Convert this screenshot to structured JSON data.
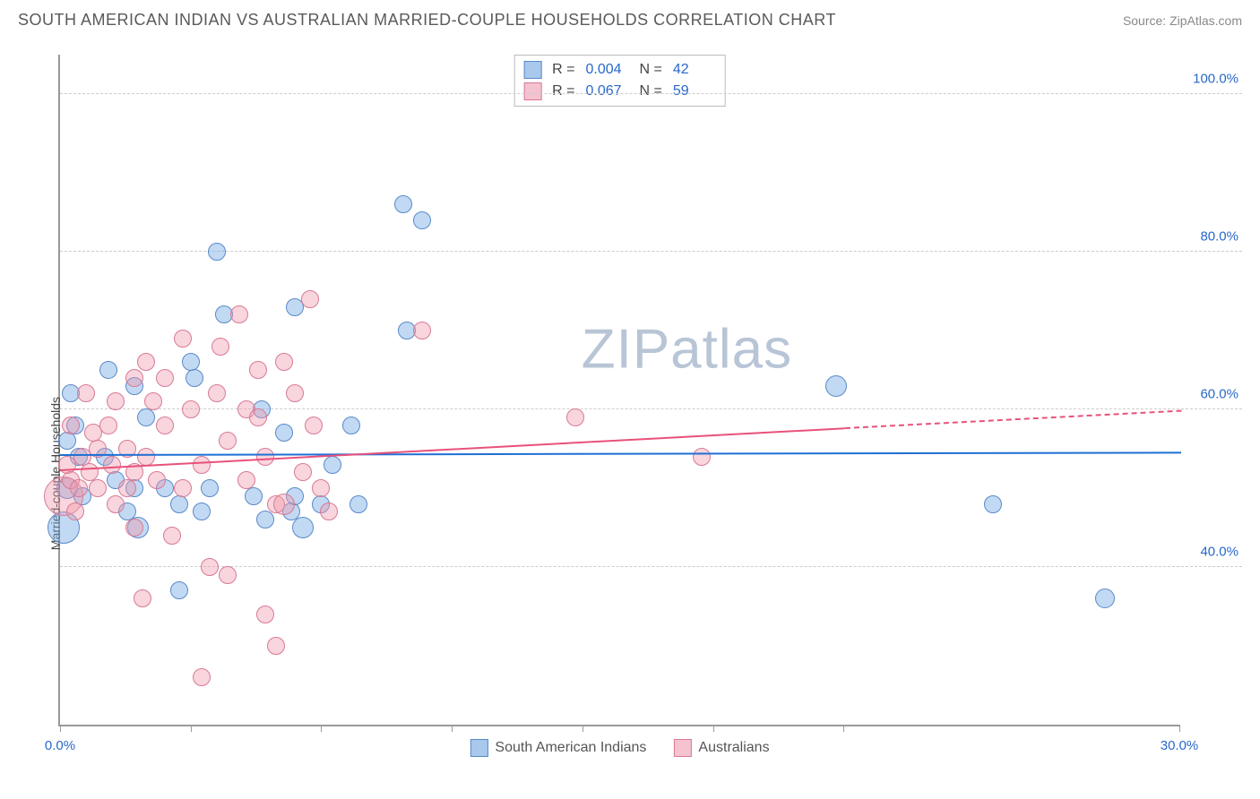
{
  "header": {
    "title": "SOUTH AMERICAN INDIAN VS AUSTRALIAN MARRIED-COUPLE HOUSEHOLDS CORRELATION CHART",
    "source": "Source: ZipAtlas.com"
  },
  "chart": {
    "type": "scatter",
    "y_label": "Married-couple Households",
    "xlim": [
      0,
      30
    ],
    "ylim": [
      20,
      105
    ],
    "x_ticks": [
      0,
      3.5,
      7,
      10.5,
      14,
      17.5,
      21,
      30
    ],
    "x_tick_labels": {
      "0": "0.0%",
      "30": "30.0%"
    },
    "y_gridlines": [
      40,
      60,
      80,
      100
    ],
    "y_tick_labels": {
      "40": "40.0%",
      "60": "60.0%",
      "80": "80.0%",
      "100": "100.0%"
    },
    "background_color": "#ffffff",
    "grid_color": "#cccccc",
    "axis_color": "#999999",
    "tick_label_color": "#2968c8",
    "watermark": "ZIPatlas",
    "series": [
      {
        "name": "South American Indians",
        "color_fill": "rgba(120,170,230,0.45)",
        "color_stroke": "#5a8ac8",
        "swatch_fill": "#a8c8ec",
        "swatch_stroke": "#5a8ac8",
        "trend_color": "#1f6fd4",
        "marker_radius": 10,
        "stats": {
          "R": "0.004",
          "N": "42"
        },
        "trend": {
          "x1": 0,
          "y1": 54.5,
          "x2": 30,
          "y2": 54.8
        },
        "points": [
          {
            "x": 0.2,
            "y": 50,
            "r": 12
          },
          {
            "x": 0.1,
            "y": 45,
            "r": 18
          },
          {
            "x": 0.3,
            "y": 62
          },
          {
            "x": 0.5,
            "y": 54
          },
          {
            "x": 0.6,
            "y": 49
          },
          {
            "x": 0.2,
            "y": 56
          },
          {
            "x": 0.4,
            "y": 58
          },
          {
            "x": 1.3,
            "y": 65
          },
          {
            "x": 1.2,
            "y": 54
          },
          {
            "x": 1.5,
            "y": 51
          },
          {
            "x": 1.8,
            "y": 47
          },
          {
            "x": 2.0,
            "y": 50
          },
          {
            "x": 2.0,
            "y": 63
          },
          {
            "x": 2.1,
            "y": 45,
            "r": 12
          },
          {
            "x": 2.3,
            "y": 59
          },
          {
            "x": 2.8,
            "y": 50
          },
          {
            "x": 3.2,
            "y": 48
          },
          {
            "x": 3.5,
            "y": 66
          },
          {
            "x": 3.2,
            "y": 37
          },
          {
            "x": 3.6,
            "y": 64
          },
          {
            "x": 3.8,
            "y": 47
          },
          {
            "x": 4.0,
            "y": 50
          },
          {
            "x": 4.2,
            "y": 80
          },
          {
            "x": 4.4,
            "y": 72
          },
          {
            "x": 5.2,
            "y": 49
          },
          {
            "x": 5.5,
            "y": 46
          },
          {
            "x": 5.4,
            "y": 60
          },
          {
            "x": 6.0,
            "y": 57
          },
          {
            "x": 6.2,
            "y": 47
          },
          {
            "x": 6.3,
            "y": 49
          },
          {
            "x": 6.3,
            "y": 73
          },
          {
            "x": 6.5,
            "y": 45,
            "r": 12
          },
          {
            "x": 7.0,
            "y": 48
          },
          {
            "x": 7.3,
            "y": 53
          },
          {
            "x": 7.8,
            "y": 58
          },
          {
            "x": 8.0,
            "y": 48
          },
          {
            "x": 9.3,
            "y": 70
          },
          {
            "x": 9.2,
            "y": 86
          },
          {
            "x": 9.7,
            "y": 84
          },
          {
            "x": 20.8,
            "y": 63,
            "r": 12
          },
          {
            "x": 25.0,
            "y": 48
          },
          {
            "x": 28.0,
            "y": 36,
            "r": 11
          }
        ]
      },
      {
        "name": "Australians",
        "color_fill": "rgba(240,150,170,0.4)",
        "color_stroke": "#d87a95",
        "swatch_fill": "#f5c2cf",
        "swatch_stroke": "#d87a95",
        "trend_color": "#e8517a",
        "marker_radius": 10,
        "stats": {
          "R": "0.067",
          "N": "59"
        },
        "trend_solid": {
          "x1": 0,
          "y1": 52.5,
          "x2": 21,
          "y2": 57.8
        },
        "trend_dashed": {
          "x1": 21,
          "y1": 57.8,
          "x2": 30,
          "y2": 60.0
        },
        "points": [
          {
            "x": 0.1,
            "y": 49,
            "r": 22
          },
          {
            "x": 0.2,
            "y": 53
          },
          {
            "x": 0.3,
            "y": 51
          },
          {
            "x": 0.3,
            "y": 58
          },
          {
            "x": 0.5,
            "y": 50
          },
          {
            "x": 0.6,
            "y": 54
          },
          {
            "x": 0.4,
            "y": 47
          },
          {
            "x": 0.8,
            "y": 52
          },
          {
            "x": 0.9,
            "y": 57
          },
          {
            "x": 1.0,
            "y": 55
          },
          {
            "x": 1.0,
            "y": 50
          },
          {
            "x": 1.3,
            "y": 58
          },
          {
            "x": 1.4,
            "y": 53
          },
          {
            "x": 1.5,
            "y": 61
          },
          {
            "x": 1.5,
            "y": 48
          },
          {
            "x": 1.8,
            "y": 55
          },
          {
            "x": 1.8,
            "y": 50
          },
          {
            "x": 2.0,
            "y": 64
          },
          {
            "x": 2.0,
            "y": 52
          },
          {
            "x": 2.0,
            "y": 45
          },
          {
            "x": 2.2,
            "y": 36
          },
          {
            "x": 2.3,
            "y": 66
          },
          {
            "x": 2.3,
            "y": 54
          },
          {
            "x": 2.5,
            "y": 61
          },
          {
            "x": 2.6,
            "y": 51
          },
          {
            "x": 2.8,
            "y": 58
          },
          {
            "x": 2.8,
            "y": 64
          },
          {
            "x": 3.0,
            "y": 44
          },
          {
            "x": 3.3,
            "y": 50
          },
          {
            "x": 3.3,
            "y": 69
          },
          {
            "x": 3.5,
            "y": 60
          },
          {
            "x": 3.8,
            "y": 53
          },
          {
            "x": 3.8,
            "y": 26
          },
          {
            "x": 4.0,
            "y": 40
          },
          {
            "x": 4.2,
            "y": 62
          },
          {
            "x": 4.3,
            "y": 68
          },
          {
            "x": 4.5,
            "y": 39
          },
          {
            "x": 4.5,
            "y": 56
          },
          {
            "x": 4.8,
            "y": 72
          },
          {
            "x": 5.0,
            "y": 51
          },
          {
            "x": 5.0,
            "y": 60
          },
          {
            "x": 5.3,
            "y": 59
          },
          {
            "x": 5.3,
            "y": 65
          },
          {
            "x": 5.5,
            "y": 34
          },
          {
            "x": 5.5,
            "y": 54
          },
          {
            "x": 5.8,
            "y": 48
          },
          {
            "x": 5.8,
            "y": 30
          },
          {
            "x": 6.0,
            "y": 66
          },
          {
            "x": 6.0,
            "y": 48,
            "r": 12
          },
          {
            "x": 6.3,
            "y": 62
          },
          {
            "x": 6.5,
            "y": 52
          },
          {
            "x": 6.7,
            "y": 74
          },
          {
            "x": 6.8,
            "y": 58
          },
          {
            "x": 7.0,
            "y": 50
          },
          {
            "x": 7.2,
            "y": 47
          },
          {
            "x": 9.7,
            "y": 70
          },
          {
            "x": 13.8,
            "y": 59
          },
          {
            "x": 17.2,
            "y": 54
          },
          {
            "x": 0.7,
            "y": 62
          }
        ]
      }
    ]
  },
  "legend": {
    "bottom": [
      {
        "label": "South American Indians",
        "series": 0
      },
      {
        "label": "Australians",
        "series": 1
      }
    ]
  }
}
